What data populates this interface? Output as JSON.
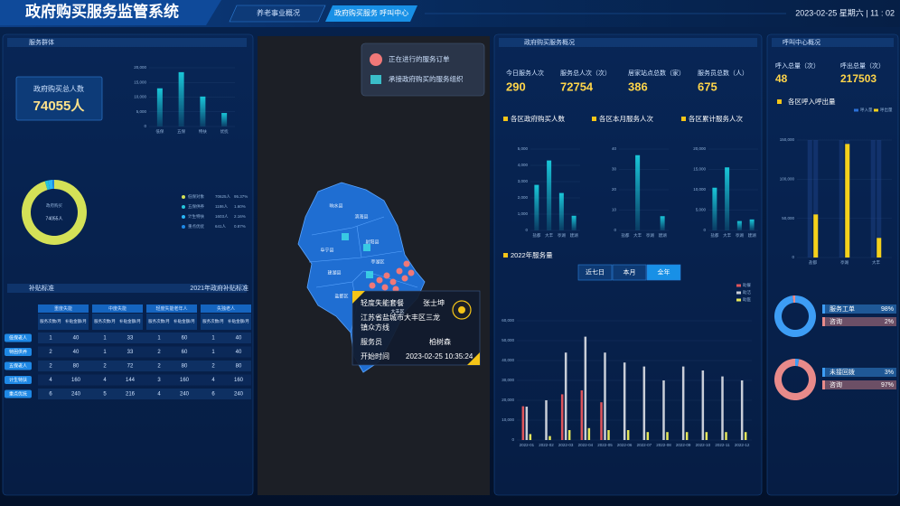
{
  "header": {
    "title": "政府购买服务监管系统",
    "tabs": [
      "养老事业概况",
      "政府购买服务 呼叫中心"
    ],
    "datetime": "2023-02-25 星期六 | 11 : 02"
  },
  "service_group": {
    "title": "服务群体",
    "total_label": "政府购买总人数",
    "total": "74055人",
    "bar_chart": {
      "type": "bar",
      "categories": [
        "低保",
        "五保",
        "特扶",
        "优抚"
      ],
      "values": [
        13000,
        18500,
        10200,
        4600
      ],
      "color": "#19c6d8",
      "ylim": [
        0,
        20000
      ],
      "yticks": [
        0,
        {
          "value": 5000,
          "label": "5,000"
        },
        {
          "value": 10000,
          "label": "10,000"
        },
        {
          "value": 15000,
          "label": "15,000"
        },
        {
          "value": 20000,
          "label": "20,000"
        }
      ]
    },
    "donut": {
      "type": "pie",
      "center_title": "政府购买",
      "center_value": "74055人",
      "categories": [
        "低保对象",
        "五保供养",
        "计生特扶",
        "重点优抚"
      ],
      "values": [
        70625,
        1186,
        1603,
        641
      ],
      "value_labels": [
        "70625人",
        "1186人",
        "1603人",
        "641人"
      ],
      "percents": [
        "95.37%",
        "1.60%",
        "2.16%",
        "0.87%"
      ],
      "colors": [
        "#d4e157",
        "#26c6da",
        "#29b6f6",
        "#1e88e5"
      ]
    }
  },
  "subsidy": {
    "title": "补贴标准",
    "subtitle": "2021年政府补贴标准",
    "group_headers": [
      "重度失能",
      "中度失能",
      "轻度失能老年人",
      "失独老人"
    ],
    "sub_headers": [
      "服务次数/月",
      "补贴金额/月"
    ],
    "row_labels": [
      "低保老人",
      "特困供养",
      "五保老人",
      "计生特扶",
      "重点优抚"
    ],
    "rows": [
      [
        1,
        40,
        1,
        33,
        1,
        60,
        1,
        40
      ],
      [
        2,
        40,
        1,
        33,
        2,
        60,
        1,
        40
      ],
      [
        2,
        80,
        2,
        72,
        2,
        80,
        2,
        80
      ],
      [
        4,
        160,
        4,
        144,
        3,
        160,
        4,
        160
      ],
      [
        6,
        240,
        5,
        216,
        4,
        240,
        6,
        240
      ]
    ]
  },
  "map": {
    "legend": [
      "正在进行的服务订单",
      "承接政府购买的服务组织"
    ],
    "districts": [
      "响水县",
      "滨海县",
      "阜宁县",
      "射阳县",
      "建湖县",
      "盐都区",
      "亭湖区",
      "大丰区"
    ],
    "popup": {
      "package": "轻度失能套餐",
      "name": "张士坤",
      "address_lines": [
        "江苏省盐城市大丰区三龙",
        "镇众方线"
      ],
      "staff_label": "服务员",
      "staff": "柏树森",
      "start_label": "开始时间",
      "start": "2023-02-25 10:35:24"
    }
  },
  "overview": {
    "title": "政府购买服务概况",
    "stats": [
      {
        "label": "今日服务人次",
        "value": 290
      },
      {
        "label": "服务总人次（次）",
        "value": 72754
      },
      {
        "label": "居家站点总数（家）",
        "value": 386
      },
      {
        "label": "服务员总数（人）",
        "value": 675
      }
    ],
    "charts": [
      {
        "type": "bar",
        "title": "各区政府购买人数",
        "categories": [
          "盐都",
          "大丰",
          "亭湖",
          "建湖"
        ],
        "values": [
          2800,
          4300,
          2300,
          900
        ],
        "color": "#19c6d8",
        "ylim": [
          0,
          5000
        ],
        "yticks": [
          0,
          {
            "value": 1000,
            "label": "1,000"
          },
          {
            "value": 2000,
            "label": "2,000"
          },
          {
            "value": 3000,
            "label": "3,000"
          },
          {
            "value": 4000,
            "label": "4,000"
          },
          {
            "value": 5000,
            "label": "5,000"
          }
        ]
      },
      {
        "type": "bar",
        "title": "各区本月服务人次",
        "categories": [
          "盐都",
          "大丰",
          "亭湖",
          "建湖"
        ],
        "values": [
          0,
          37,
          0,
          7
        ],
        "color": "#19c6d8",
        "ylim": [
          0,
          40
        ],
        "yticks": [
          0,
          10,
          20,
          30,
          40
        ]
      },
      {
        "type": "bar",
        "title": "各区累计服务人次",
        "categories": [
          "盐都",
          "大丰",
          "亭湖",
          "建湖"
        ],
        "values": [
          10500,
          15500,
          2300,
          2700
        ],
        "color": "#19c6d8",
        "ylim": [
          0,
          20000
        ],
        "yticks": [
          0,
          {
            "value": 5000,
            "label": "5,000"
          },
          {
            "value": 10000,
            "label": "10,000"
          },
          {
            "value": 15000,
            "label": "15,000"
          },
          {
            "value": 20000,
            "label": "20,000"
          }
        ]
      }
    ],
    "yearly": {
      "type": "bar",
      "title": "2022年服务量",
      "buttons": [
        "近七日",
        "本月",
        "全年"
      ],
      "active": 2,
      "categories": [
        "2022-01",
        "2022-02",
        "2022-03",
        "2022-04",
        "2022-05",
        "2022-06",
        "2022-07",
        "2022-08",
        "2022-09",
        "2022-10",
        "2022-11",
        "2022-12"
      ],
      "series": [
        {
          "name": "助餐",
          "color": "#e0555b",
          "values": [
            17000,
            0,
            23000,
            25000,
            19000,
            0,
            0,
            0,
            0,
            0,
            0,
            0
          ]
        },
        {
          "name": "助洁",
          "color": "#c9ced8",
          "values": [
            16800,
            20000,
            44000,
            52000,
            44000,
            39000,
            37000,
            30000,
            37000,
            35000,
            32000,
            30000
          ]
        },
        {
          "name": "助医",
          "color": "#e6e65a",
          "values": [
            3000,
            2000,
            5000,
            6000,
            5000,
            5000,
            4000,
            4000,
            4000,
            4000,
            4000,
            4000
          ]
        }
      ],
      "ylim": [
        0,
        60000
      ],
      "yticks": [
        0,
        {
          "value": 10000,
          "label": "10,000"
        },
        {
          "value": 20000,
          "label": "20,000"
        },
        {
          "value": 30000,
          "label": "30,000"
        },
        {
          "value": 40000,
          "label": "40,000"
        },
        {
          "value": 50000,
          "label": "50,000"
        },
        {
          "value": 60000,
          "label": "60,000"
        }
      ]
    }
  },
  "call_center": {
    "title": "呼叫中心概况",
    "stats": [
      {
        "label": "呼入总量（次）",
        "value": 48
      },
      {
        "label": "呼出总量（次）",
        "value": 217503
      }
    ],
    "chart": {
      "type": "bar",
      "title": "各区呼入呼出量",
      "categories": [
        "盐都",
        "亭湖",
        "大丰"
      ],
      "series": [
        {
          "name": "呼入量",
          "color": "#2b6fd6",
          "values": [
            20,
            20,
            8
          ]
        },
        {
          "name": "呼出量",
          "color": "#f5d11b",
          "values": [
            55000,
            145000,
            25000
          ]
        }
      ],
      "ylim": [
        0,
        150000
      ],
      "yticks": [
        0,
        {
          "value": 50000,
          "label": "50,000"
        },
        {
          "value": 100000,
          "label": "100,000"
        },
        {
          "value": 150000,
          "label": "150,000"
        }
      ]
    },
    "donuts": [
      {
        "type": "pie",
        "categories": [
          "服务工单",
          "咨询"
        ],
        "values": [
          98,
          2
        ],
        "value_labels": [
          "98%",
          "2%"
        ],
        "colors": [
          "#3d9df5",
          "#e88a8a"
        ]
      },
      {
        "type": "pie",
        "categories": [
          "未接回拨",
          "咨询"
        ],
        "values": [
          3,
          97
        ],
        "value_labels": [
          "3%",
          "97%"
        ],
        "colors": [
          "#3d9df5",
          "#e88a8a"
        ]
      }
    ]
  }
}
